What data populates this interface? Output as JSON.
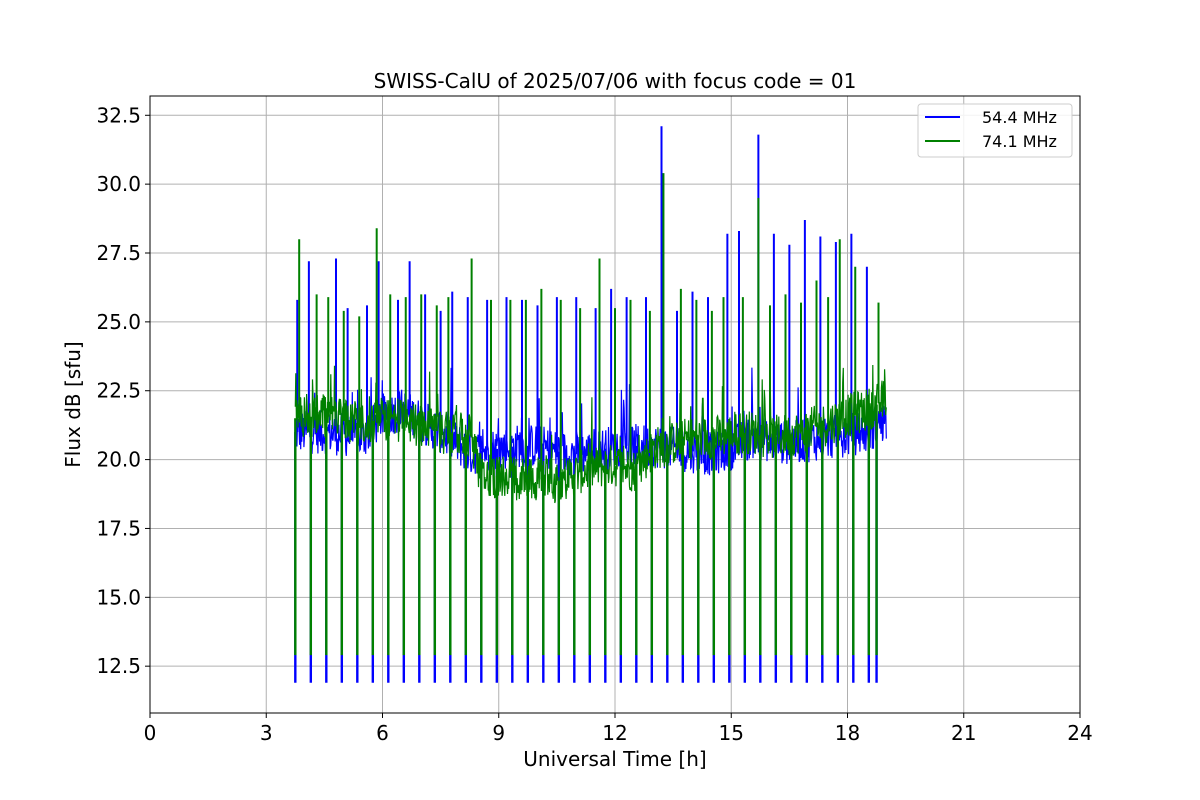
{
  "chart_data": {
    "type": "line",
    "title": "SWISS-CalU of 2025/07/06 with focus code = 01",
    "xlabel": "Universal Time [h]",
    "ylabel": "Flux dB [sfu]",
    "xlim": [
      0,
      24
    ],
    "ylim": [
      10.8,
      33.2
    ],
    "xticks": [
      0,
      3,
      6,
      9,
      12,
      15,
      18,
      21,
      24
    ],
    "xtick_labels": [
      "0",
      "3",
      "6",
      "9",
      "12",
      "15",
      "18",
      "21",
      "24"
    ],
    "yticks": [
      12.5,
      15.0,
      17.5,
      20.0,
      22.5,
      25.0,
      27.5,
      30.0,
      32.5
    ],
    "ytick_labels": [
      "12.5",
      "15.0",
      "17.5",
      "20.0",
      "22.5",
      "25.0",
      "27.5",
      "30.0",
      "32.5"
    ],
    "grid": true,
    "legend_position": "top-right",
    "calibration_times": [
      3.75,
      4.15,
      4.55,
      4.95,
      5.35,
      5.75,
      6.15,
      6.55,
      6.95,
      7.35,
      7.75,
      8.15,
      8.55,
      8.95,
      9.35,
      9.75,
      10.15,
      10.55,
      10.95,
      11.35,
      11.75,
      12.15,
      12.55,
      12.95,
      13.35,
      13.75,
      14.15,
      14.55,
      14.95,
      15.35,
      15.75,
      16.15,
      16.55,
      16.95,
      17.35,
      17.75,
      18.15,
      18.55,
      18.75
    ],
    "series": [
      {
        "name": "54.4 MHz",
        "color": "#0000ff",
        "baseline_x": [
          3.75,
          4.5,
          5.5,
          6.0,
          6.5,
          7.0,
          7.5,
          8.0,
          8.3,
          8.5,
          9.0,
          9.5,
          10.0,
          10.5,
          11.0,
          11.5,
          12.0,
          12.5,
          13.0,
          13.5,
          14.0,
          14.5,
          15.0,
          15.5,
          16.0,
          16.5,
          17.0,
          17.5,
          18.0,
          18.5,
          19.0
        ],
        "baseline_y": [
          21.0,
          21.0,
          20.8,
          21.6,
          21.8,
          21.4,
          21.0,
          20.5,
          20.2,
          20.3,
          20.4,
          20.5,
          20.5,
          20.3,
          20.2,
          20.3,
          20.5,
          20.5,
          20.5,
          20.4,
          20.3,
          20.2,
          20.4,
          20.8,
          20.7,
          20.6,
          20.7,
          20.8,
          20.9,
          21.0,
          21.5
        ],
        "peak_times": [
          3.8,
          4.1,
          4.8,
          5.1,
          5.6,
          5.9,
          6.4,
          6.7,
          7.1,
          7.5,
          7.8,
          8.2,
          8.7,
          9.2,
          9.6,
          10.0,
          10.5,
          11.0,
          11.5,
          11.9,
          12.3,
          12.8,
          13.2,
          13.6,
          14.0,
          14.4,
          14.9,
          15.2,
          15.7,
          16.1,
          16.5,
          16.9,
          17.3,
          17.7,
          18.1,
          18.5
        ],
        "peak_values": [
          25.8,
          27.2,
          27.3,
          25.5,
          25.6,
          27.2,
          25.8,
          27.2,
          26.0,
          25.4,
          26.1,
          25.9,
          25.8,
          25.9,
          25.8,
          25.6,
          25.9,
          25.9,
          25.5,
          26.2,
          25.9,
          25.9,
          32.1,
          25.4,
          26.1,
          25.9,
          28.2,
          28.3,
          31.8,
          28.2,
          27.8,
          28.7,
          28.1,
          27.9,
          28.2,
          27.0
        ]
      },
      {
        "name": "74.1 MHz",
        "color": "#008000",
        "baseline_x": [
          3.75,
          4.5,
          5.0,
          5.5,
          6.0,
          6.5,
          7.0,
          7.5,
          8.0,
          8.3,
          8.5,
          9.0,
          9.5,
          10.0,
          10.5,
          11.0,
          11.5,
          12.0,
          12.5,
          13.0,
          13.5,
          14.0,
          14.5,
          15.0,
          15.5,
          16.0,
          16.5,
          17.0,
          17.5,
          18.0,
          18.5,
          19.0
        ],
        "baseline_y": [
          21.5,
          21.6,
          21.4,
          21.3,
          21.5,
          21.4,
          21.2,
          21.0,
          21.0,
          20.8,
          19.5,
          19.4,
          19.3,
          19.3,
          19.2,
          19.5,
          19.7,
          19.8,
          19.6,
          20.4,
          20.6,
          20.8,
          20.8,
          20.9,
          21.0,
          20.8,
          20.9,
          21.1,
          21.3,
          21.6,
          21.8,
          22.2
        ],
        "peak_times": [
          3.85,
          4.3,
          4.6,
          5.0,
          5.4,
          5.85,
          6.2,
          6.6,
          7.0,
          7.4,
          7.7,
          8.3,
          8.8,
          9.3,
          9.7,
          10.1,
          10.6,
          11.1,
          11.6,
          12.0,
          12.4,
          12.9,
          13.25,
          13.7,
          14.1,
          14.5,
          14.8,
          15.3,
          15.7,
          16.0,
          16.4,
          16.8,
          17.2,
          17.5,
          17.8,
          18.2,
          18.8
        ],
        "peak_values": [
          28.0,
          26.0,
          25.9,
          25.4,
          25.2,
          28.4,
          26.0,
          25.9,
          26.0,
          25.6,
          25.9,
          27.3,
          25.8,
          25.8,
          25.8,
          26.2,
          25.8,
          25.5,
          27.3,
          25.5,
          25.8,
          25.4,
          30.4,
          26.2,
          25.8,
          25.4,
          25.9,
          25.9,
          29.5,
          25.6,
          26.0,
          25.7,
          26.5,
          25.9,
          28.0,
          27.0,
          25.7
        ]
      }
    ],
    "dip_min": 11.9,
    "dip_top": 12.9
  }
}
